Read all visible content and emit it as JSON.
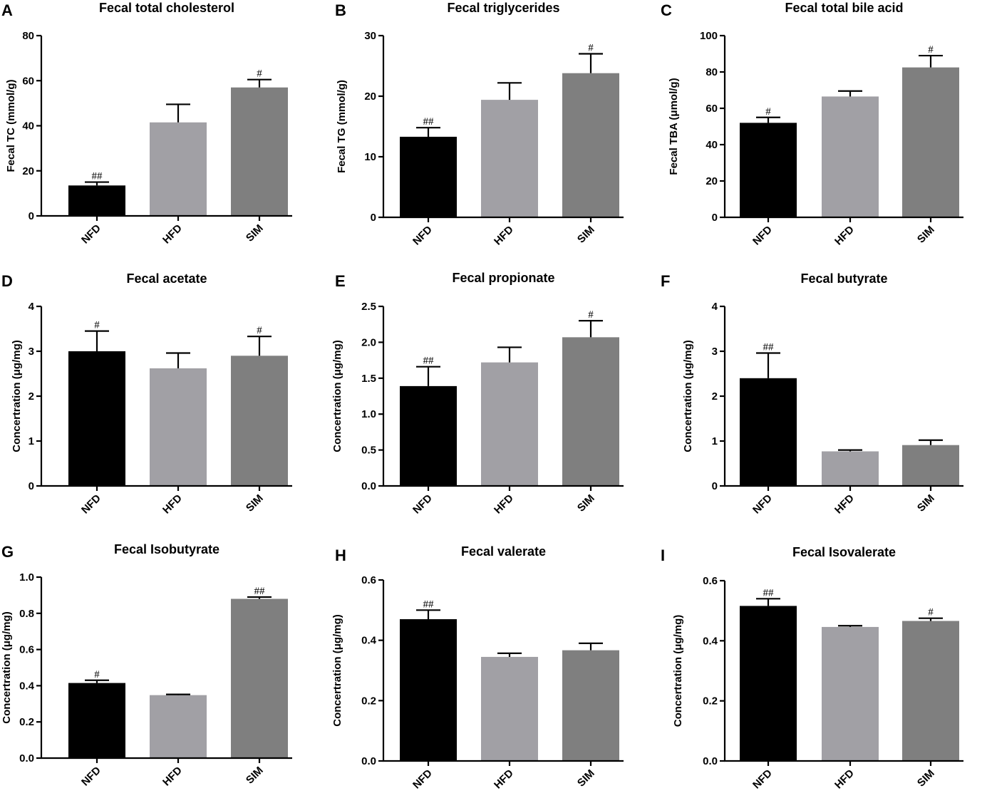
{
  "colors": {
    "NFD": "#000000",
    "HFD": "#a1a0a5",
    "SIM": "#7f7f7f"
  },
  "chart_data": [
    {
      "letter": "A",
      "type": "bar",
      "title": "Fecal total cholesterol",
      "ylabel": "Fecal TC (mmol/g)",
      "categories": [
        "NFD",
        "HFD",
        "SIM"
      ],
      "values": [
        13.5,
        41.5,
        57.0
      ],
      "errors": [
        1.5,
        8.0,
        3.5
      ],
      "significance": [
        "##",
        "",
        "#"
      ],
      "ylim": [
        0,
        80
      ],
      "yticks": [
        0,
        20,
        40,
        60,
        80
      ],
      "ytick_labels": [
        "0",
        "20",
        "40",
        "60",
        "80"
      ]
    },
    {
      "letter": "B",
      "type": "bar",
      "title": "Fecal triglycerides",
      "ylabel": "Fecal TG (mmol/g)",
      "categories": [
        "NFD",
        "HFD",
        "SIM"
      ],
      "values": [
        13.3,
        19.4,
        23.8
      ],
      "errors": [
        1.5,
        2.8,
        3.2
      ],
      "significance": [
        "##",
        "",
        "#"
      ],
      "ylim": [
        0,
        30
      ],
      "yticks": [
        0,
        10,
        20,
        30
      ],
      "ytick_labels": [
        "0",
        "10",
        "20",
        "30"
      ]
    },
    {
      "letter": "C",
      "type": "bar",
      "title": "Fecal total bile acid",
      "ylabel": "Fecal TBA (μmol/g)",
      "categories": [
        "NFD",
        "HFD",
        "SIM"
      ],
      "values": [
        52.0,
        66.5,
        82.5
      ],
      "errors": [
        3.0,
        3.0,
        6.5
      ],
      "significance": [
        "#",
        "",
        "#"
      ],
      "ylim": [
        0,
        100
      ],
      "yticks": [
        0,
        20,
        40,
        60,
        80,
        100
      ],
      "ytick_labels": [
        "0",
        "20",
        "40",
        "60",
        "80",
        "100"
      ]
    },
    {
      "letter": "D",
      "type": "bar",
      "title": "Fecal acetate",
      "ylabel": "Concertration (μg/mg)",
      "categories": [
        "NFD",
        "HFD",
        "SIM"
      ],
      "values": [
        3.0,
        2.62,
        2.9
      ],
      "errors": [
        0.45,
        0.34,
        0.43
      ],
      "significance": [
        "#",
        "",
        "#"
      ],
      "ylim": [
        0,
        4
      ],
      "yticks": [
        0,
        1,
        2,
        3,
        4
      ],
      "ytick_labels": [
        "0",
        "1",
        "2",
        "3",
        "4"
      ]
    },
    {
      "letter": "E",
      "type": "bar",
      "title": "Fecal propionate",
      "ylabel": "Concertration (μg/mg)",
      "categories": [
        "NFD",
        "HFD",
        "SIM"
      ],
      "values": [
        1.39,
        1.72,
        2.07
      ],
      "errors": [
        0.27,
        0.21,
        0.23
      ],
      "significance": [
        "##",
        "",
        "#"
      ],
      "ylim": [
        0,
        2.5
      ],
      "yticks": [
        0,
        0.5,
        1.0,
        1.5,
        2.0,
        2.5
      ],
      "ytick_labels": [
        "0.0",
        "0.5",
        "1.0",
        "1.5",
        "2.0",
        "2.5"
      ]
    },
    {
      "letter": "F",
      "type": "bar",
      "title": "Fecal butyrate",
      "ylabel": "Concertration (μg/mg)",
      "categories": [
        "NFD",
        "HFD",
        "SIM"
      ],
      "values": [
        2.4,
        0.77,
        0.91
      ],
      "errors": [
        0.56,
        0.03,
        0.11
      ],
      "significance": [
        "##",
        "",
        ""
      ],
      "ylim": [
        0,
        4
      ],
      "yticks": [
        0,
        1,
        2,
        3,
        4
      ],
      "ytick_labels": [
        "0",
        "1",
        "2",
        "3",
        "4"
      ]
    },
    {
      "letter": "G",
      "type": "bar",
      "title": "Fecal Isobutyrate",
      "ylabel": "Concertration (μg/mg)",
      "categories": [
        "NFD",
        "HFD",
        "SIM"
      ],
      "values": [
        0.415,
        0.348,
        0.88
      ],
      "errors": [
        0.015,
        0.004,
        0.01
      ],
      "significance": [
        "#",
        "",
        "##"
      ],
      "ylim": [
        0,
        1.0
      ],
      "yticks": [
        0,
        0.2,
        0.4,
        0.6,
        0.8,
        1.0
      ],
      "ytick_labels": [
        "0.0",
        "0.2",
        "0.4",
        "0.6",
        "0.8",
        "1.0"
      ]
    },
    {
      "letter": "H",
      "type": "bar",
      "title": "Fecal valerate",
      "ylabel": "Concertration (μg/mg)",
      "categories": [
        "NFD",
        "HFD",
        "SIM"
      ],
      "values": [
        0.47,
        0.345,
        0.367
      ],
      "errors": [
        0.03,
        0.012,
        0.023
      ],
      "significance": [
        "##",
        "",
        ""
      ],
      "ylim": [
        0,
        0.6
      ],
      "yticks": [
        0,
        0.2,
        0.4,
        0.6
      ],
      "ytick_labels": [
        "0.0",
        "0.2",
        "0.4",
        "0.6"
      ]
    },
    {
      "letter": "I",
      "type": "bar",
      "title": "Fecal Isovalerate",
      "ylabel": "Concertration (μg/mg)",
      "categories": [
        "NFD",
        "HFD",
        "SIM"
      ],
      "values": [
        0.516,
        0.446,
        0.466
      ],
      "errors": [
        0.024,
        0.004,
        0.009
      ],
      "significance": [
        "##",
        "",
        "#"
      ],
      "ylim": [
        0,
        0.6
      ],
      "yticks": [
        0,
        0.2,
        0.4,
        0.6
      ],
      "ytick_labels": [
        "0.0",
        "0.2",
        "0.4",
        "0.6"
      ]
    }
  ]
}
